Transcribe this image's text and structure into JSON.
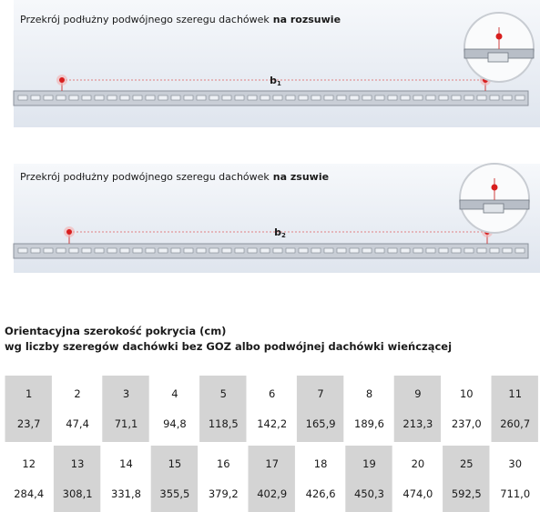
{
  "panels": [
    {
      "caption": "Przekrój podłużny podwójnego szeregu dachówek",
      "caption_bold": "na rozsuwie",
      "label": "b",
      "label_sub": "1"
    },
    {
      "caption": "Przekrój podłużny podwójnego szeregu dachówek",
      "caption_bold": "na zsuwie",
      "label": "b",
      "label_sub": "2"
    }
  ],
  "table": {
    "title_lines": [
      "Orientacyjna szerokość pokrycia (cm)",
      "wg liczby szeregów dachówki bez GOZ albo podwójnej dachówki wieńczącej"
    ],
    "rows": [
      [
        [
          "1",
          "23,7"
        ],
        [
          "2",
          "47,4"
        ],
        [
          "3",
          "71,1"
        ],
        [
          "4",
          "94,8"
        ],
        [
          "5",
          "118,5"
        ],
        [
          "6",
          "142,2"
        ],
        [
          "7",
          "165,9"
        ],
        [
          "8",
          "189,6"
        ],
        [
          "9",
          "213,3"
        ],
        [
          "10",
          "237,0"
        ],
        [
          "11",
          "260,7"
        ]
      ],
      [
        [
          "12",
          "284,4"
        ],
        [
          "13",
          "308,1"
        ],
        [
          "14",
          "331,8"
        ],
        [
          "15",
          "355,5"
        ],
        [
          "16",
          "379,2"
        ],
        [
          "17",
          "402,9"
        ],
        [
          "18",
          "426,6"
        ],
        [
          "19",
          "450,3"
        ],
        [
          "20",
          "474,0"
        ],
        [
          "25",
          "592,5"
        ],
        [
          "30",
          "711,0"
        ]
      ]
    ]
  }
}
